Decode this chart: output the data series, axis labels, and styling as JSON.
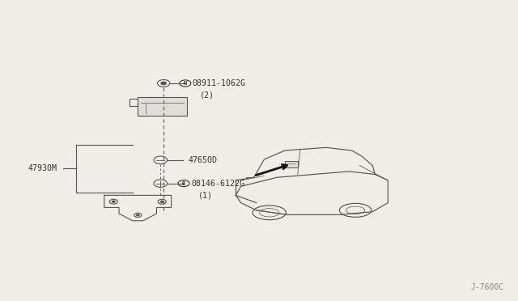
{
  "bg_color": "#f0ede8",
  "line_color": "#555555",
  "text_color": "#333333",
  "fig_width": 6.4,
  "fig_height": 3.72,
  "dpi": 100,
  "watermark": "J-7600C",
  "labels": {
    "part1": "08911-1062G",
    "part1_qty": "(2)",
    "part2": "47650D",
    "part3": "08146-6122G",
    "part3_qty": "(1)",
    "part4": "47930M"
  }
}
